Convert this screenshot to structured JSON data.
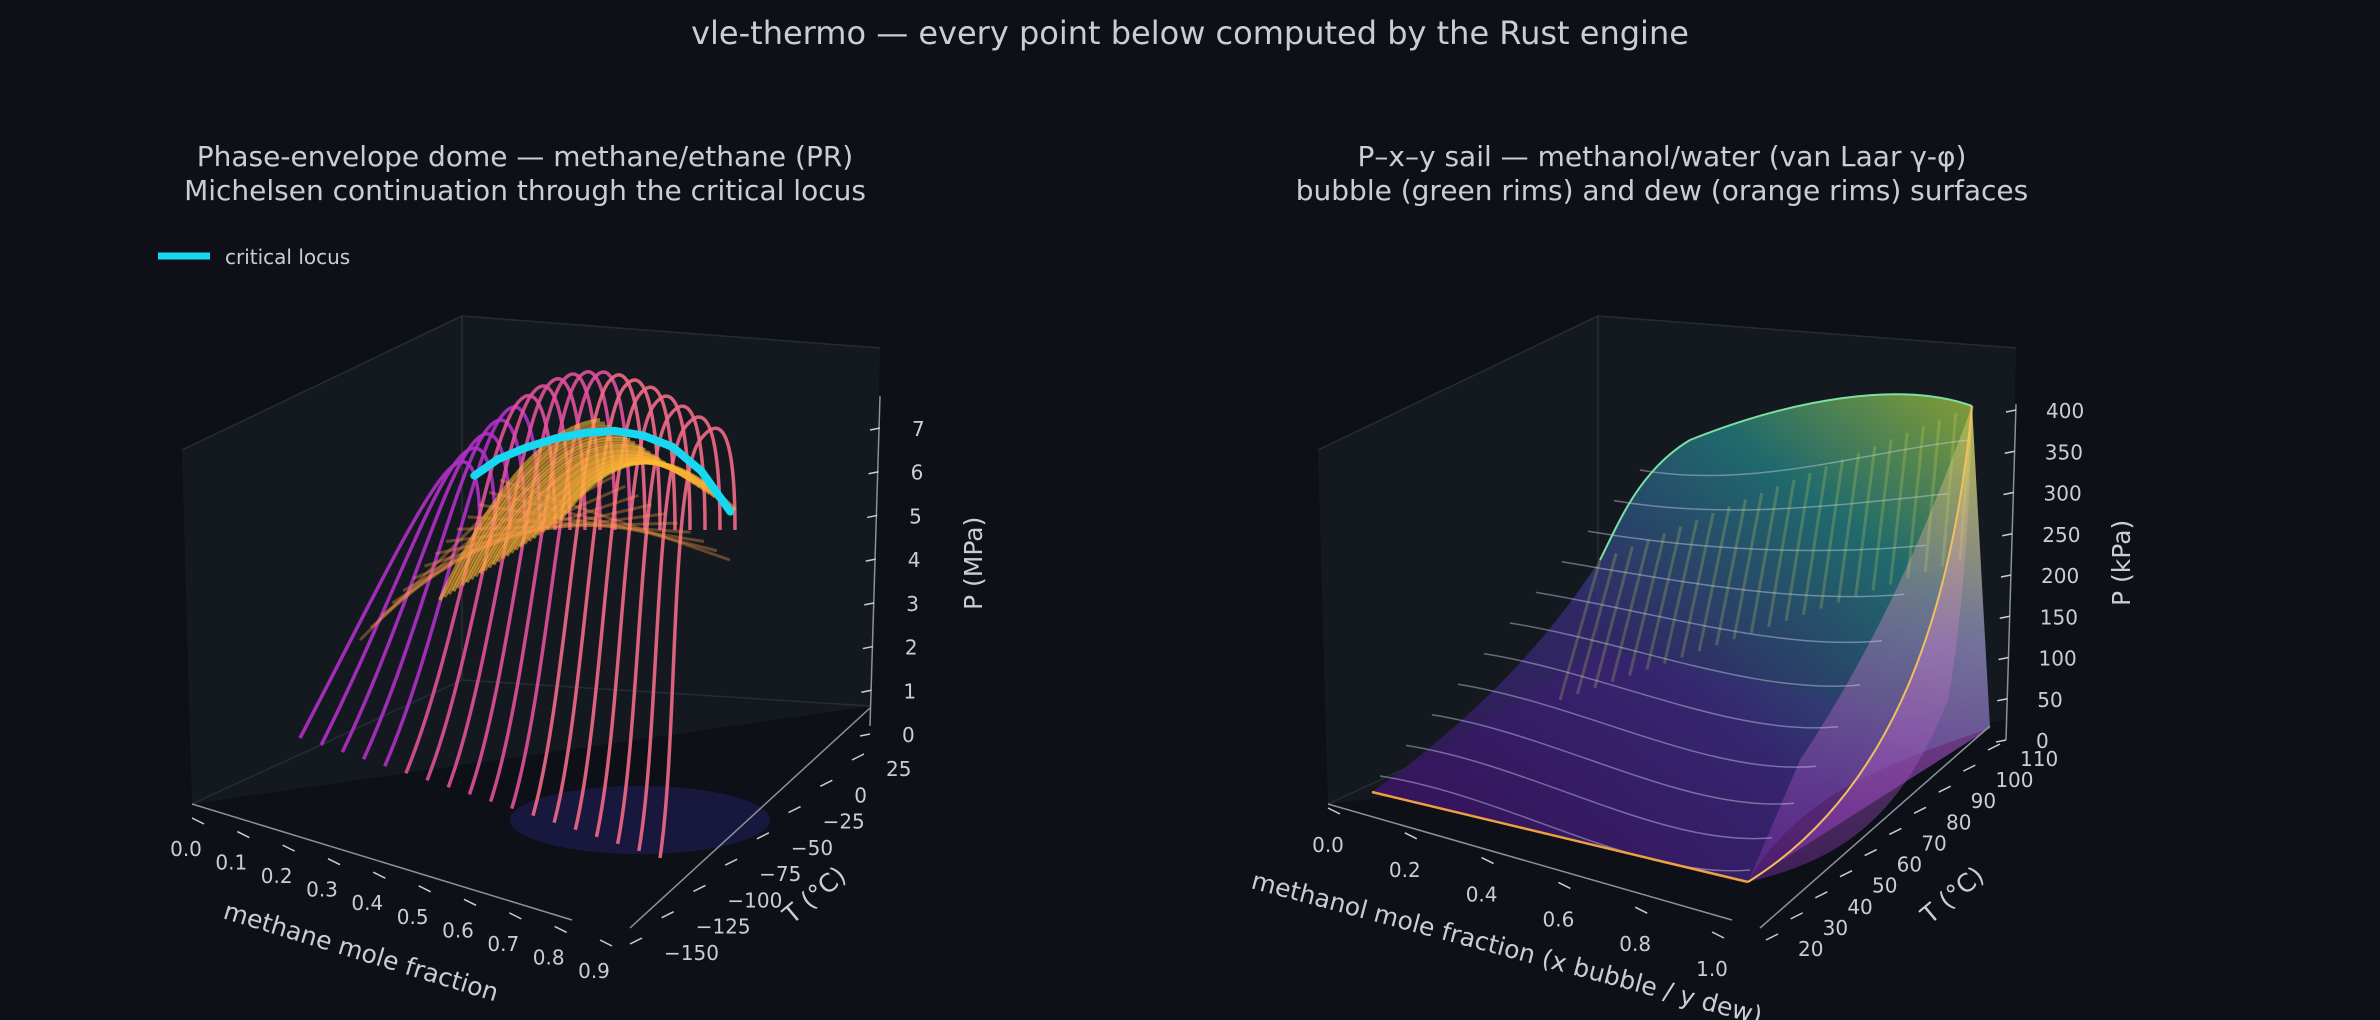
{
  "suptitle": "vle-thermo — every point below computed by the Rust engine",
  "colors": {
    "background": "#0d1117",
    "pane": "#161b22",
    "text": "#c9ced6",
    "critical_locus": "#18d7f0",
    "bubble_rim": "#7be0a0",
    "dew_rim": "#f0a040"
  },
  "chart_data": [
    {
      "type": "surface",
      "title_lines": [
        "Phase-envelope dome — methane/ethane (PR)",
        "Michelsen continuation through the critical locus"
      ],
      "xlabel": "methane mole fraction",
      "ylabel": "T (°C)",
      "zlabel": "P (MPa)",
      "x_ticks": [
        "0.0",
        "0.1",
        "0.2",
        "0.3",
        "0.4",
        "0.5",
        "0.6",
        "0.7",
        "0.8",
        "0.9"
      ],
      "y_ticks": [
        "−150",
        "−125",
        "−100",
        "−75",
        "−50",
        "−25",
        "0",
        "25"
      ],
      "z_ticks": [
        "0",
        "1",
        "2",
        "3",
        "4",
        "5",
        "6",
        "7"
      ],
      "xlim": [
        0.0,
        0.9
      ],
      "ylim": [
        -150,
        25
      ],
      "zlim": [
        0,
        7
      ],
      "legend": {
        "label": "critical locus",
        "position": "top-left"
      },
      "series": [
        {
          "name": "critical locus",
          "x": [
            0.02,
            0.1,
            0.2,
            0.3,
            0.4,
            0.5,
            0.6,
            0.7,
            0.8,
            0.9
          ],
          "y": [
            32,
            25,
            15,
            5,
            -7,
            -20,
            -35,
            -50,
            -62,
            -75
          ],
          "z": [
            5.0,
            5.6,
            6.1,
            6.5,
            6.8,
            7.0,
            7.0,
            6.8,
            6.2,
            5.1
          ]
        }
      ]
    },
    {
      "type": "surface",
      "title_lines": [
        "P–x–y sail — methanol/water (van Laar γ-φ)",
        "bubble (green rims) and dew (orange rims) surfaces"
      ],
      "xlabel": "methanol mole fraction (x bubble / y dew)",
      "ylabel": "T (°C)",
      "zlabel": "P (kPa)",
      "x_ticks": [
        "0.0",
        "0.2",
        "0.4",
        "0.6",
        "0.8",
        "1.0"
      ],
      "y_ticks": [
        "20",
        "30",
        "40",
        "50",
        "60",
        "70",
        "80",
        "90",
        "100",
        "110"
      ],
      "z_ticks": [
        "0",
        "50",
        "100",
        "150",
        "200",
        "250",
        "300",
        "350",
        "400"
      ],
      "xlim": [
        0.0,
        1.0
      ],
      "ylim": [
        20,
        110
      ],
      "zlim": [
        0,
        400
      ]
    }
  ]
}
